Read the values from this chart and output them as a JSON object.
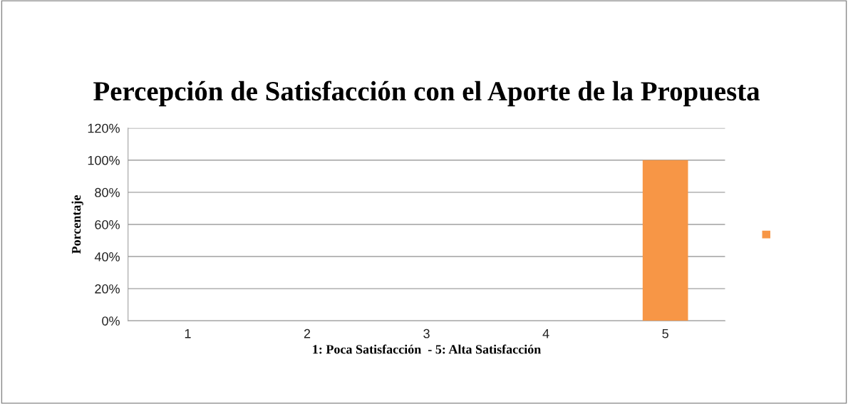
{
  "chart_data": {
    "type": "bar",
    "title": "Percepción de Satisfacción con el Aporte de la Propuesta",
    "xlabel": "1: Poca Satisfacción  - 5: Alta Satisfacción",
    "ylabel": "Porcentaje",
    "categories": [
      "1",
      "2",
      "3",
      "4",
      "5"
    ],
    "series": [
      {
        "color": "#f79646",
        "values": [
          0,
          0,
          0,
          0,
          100
        ]
      }
    ],
    "ylim": [
      0,
      120
    ],
    "yticks": [
      {
        "value": 0,
        "label": "0%"
      },
      {
        "value": 20,
        "label": "20%"
      },
      {
        "value": 40,
        "label": "40%"
      },
      {
        "value": 60,
        "label": "60%"
      },
      {
        "value": 80,
        "label": "80%"
      },
      {
        "value": 100,
        "label": "100%"
      },
      {
        "value": 120,
        "label": "120%"
      }
    ],
    "grid": "y"
  }
}
